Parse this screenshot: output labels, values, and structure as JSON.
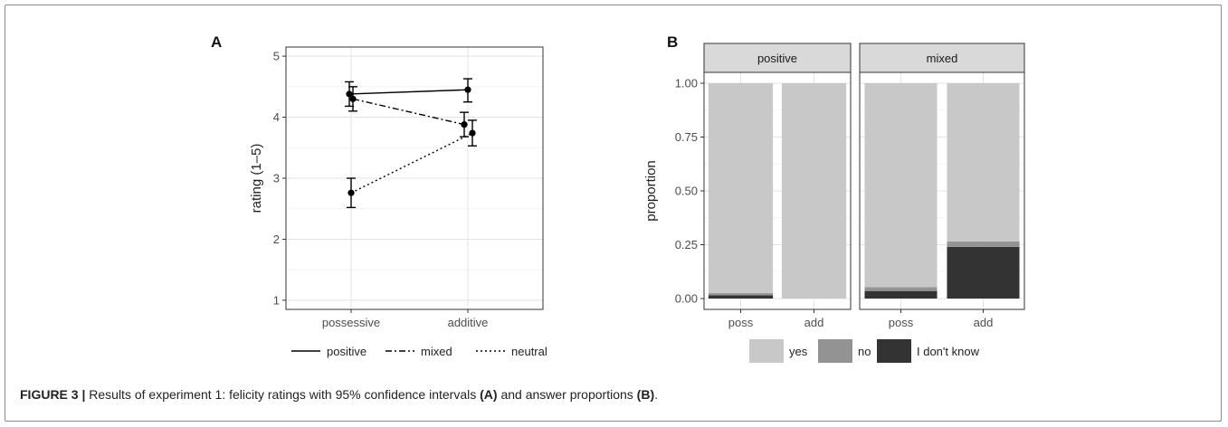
{
  "chart_data": [
    {
      "panel_label": "A",
      "type": "line",
      "x_categories": [
        "possessive",
        "additive"
      ],
      "ylabel": "rating (1–5)",
      "ylim": [
        0.85,
        5.15
      ],
      "yticks": [
        1,
        2,
        3,
        4,
        5
      ],
      "grid": true,
      "legend_position": "bottom",
      "series": [
        {
          "name": "positive",
          "linestyle": "solid",
          "values": [
            4.38,
            4.45
          ],
          "ci_low": [
            4.18,
            4.25
          ],
          "ci_high": [
            4.58,
            4.63
          ]
        },
        {
          "name": "mixed",
          "linestyle": "dashdot",
          "values": [
            4.3,
            3.88
          ],
          "ci_low": [
            4.1,
            3.68
          ],
          "ci_high": [
            4.5,
            4.08
          ]
        },
        {
          "name": "neutral",
          "linestyle": "dotted",
          "values": [
            2.76,
            3.74
          ],
          "ci_low": [
            2.52,
            3.53
          ],
          "ci_high": [
            3.0,
            3.95
          ]
        }
      ]
    },
    {
      "panel_label": "B",
      "type": "bar",
      "stacked": true,
      "ylabel": "proportion",
      "ylim": [
        0,
        1
      ],
      "yticks": [
        "0.00",
        "0.25",
        "0.50",
        "0.75",
        "1.00"
      ],
      "grid": true,
      "legend_position": "bottom",
      "legend": [
        {
          "name": "yes",
          "color": "#c8c8c8"
        },
        {
          "name": "no",
          "color": "#939393"
        },
        {
          "name": "I don't know",
          "color": "#333333"
        }
      ],
      "facets": [
        {
          "title": "positive",
          "categories": [
            "poss",
            "add"
          ],
          "stacks": {
            "I don't know": [
              0.015,
              0.0
            ],
            "no": [
              0.01,
              0.0
            ],
            "yes": [
              0.975,
              1.0
            ]
          }
        },
        {
          "title": "mixed",
          "categories": [
            "poss",
            "add"
          ],
          "stacks": {
            "I don't know": [
              0.035,
              0.24
            ],
            "no": [
              0.018,
              0.025
            ],
            "yes": [
              0.947,
              0.735
            ]
          }
        }
      ]
    }
  ],
  "caption": {
    "figure_label": "FIGURE 3 |",
    "text_1": " Results of experiment 1: felicity ratings with 95% confidence intervals ",
    "ref_a": "(A)",
    "text_2": " and answer proportions ",
    "ref_b": "(B)",
    "text_3": "."
  }
}
